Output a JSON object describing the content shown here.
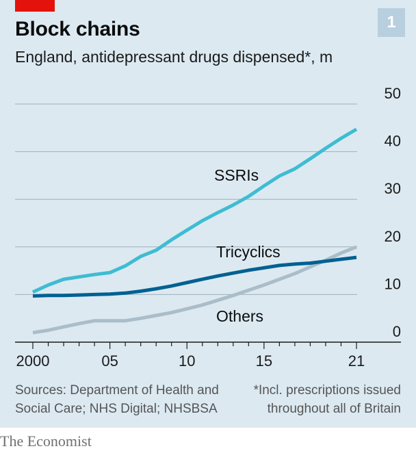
{
  "title": "Block chains",
  "subtitle": "England, antidepressant drugs dispensed*, m",
  "badge": "1",
  "source": {
    "left_line1": "Sources: Department of Health and",
    "left_line2": "Social Care; NHS Digital; NHSBSA",
    "right_line1": "*Incl. prescriptions issued",
    "right_line2": "throughout all of Britain"
  },
  "brand": "The Economist",
  "colors": {
    "background": "#dce9f1",
    "accent_red": "#e3120b",
    "ssri": "#3ebcd2",
    "tricyclics": "#006092",
    "others": "#aabdc9",
    "grid": "#9fb0bd"
  },
  "chart_data": {
    "type": "line",
    "ylim": [
      0,
      50
    ],
    "xlim": [
      2000,
      2021
    ],
    "y_ticks": [
      0,
      10,
      20,
      30,
      40,
      50
    ],
    "x_ticks": [
      {
        "value": 2000,
        "label": "2000"
      },
      {
        "value": 2005,
        "label": "05"
      },
      {
        "value": 2010,
        "label": "10"
      },
      {
        "value": 2015,
        "label": "15"
      },
      {
        "value": 2021,
        "label": "21"
      }
    ],
    "x": [
      2000,
      2001,
      2002,
      2003,
      2004,
      2005,
      2006,
      2007,
      2008,
      2009,
      2010,
      2011,
      2012,
      2013,
      2014,
      2015,
      2016,
      2017,
      2018,
      2019,
      2020,
      2021
    ],
    "series": [
      {
        "name": "SSRIs",
        "key": "ssri",
        "values": [
          10.5,
          12.0,
          13.2,
          13.7,
          14.2,
          14.6,
          16.0,
          18.0,
          19.3,
          21.5,
          23.5,
          25.5,
          27.2,
          28.8,
          30.6,
          32.8,
          34.9,
          36.4,
          38.5,
          40.7,
          42.8,
          44.7
        ]
      },
      {
        "name": "Tricyclics",
        "key": "tricyclics",
        "values": [
          9.7,
          9.8,
          9.8,
          9.9,
          10.0,
          10.1,
          10.3,
          10.7,
          11.2,
          11.8,
          12.5,
          13.2,
          13.9,
          14.5,
          15.1,
          15.6,
          16.1,
          16.4,
          16.6,
          17.0,
          17.4,
          17.8
        ]
      },
      {
        "name": "Others",
        "key": "others",
        "values": [
          2.0,
          2.5,
          3.2,
          3.9,
          4.5,
          4.5,
          4.5,
          5.0,
          5.6,
          6.2,
          7.0,
          7.8,
          8.8,
          9.8,
          10.9,
          12.0,
          13.2,
          14.4,
          15.8,
          17.2,
          18.7,
          20.0
        ]
      }
    ]
  }
}
